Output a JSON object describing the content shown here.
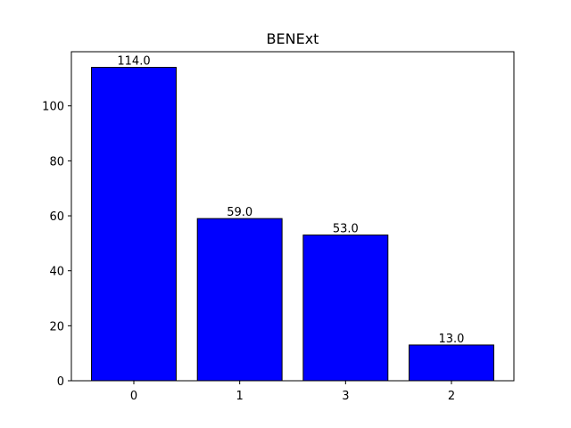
{
  "chart_data": {
    "type": "bar",
    "title": "BENExt",
    "xlabel": "",
    "ylabel": "",
    "categories": [
      "0",
      "1",
      "3",
      "2"
    ],
    "values": [
      114,
      59,
      53,
      13
    ],
    "data_labels": [
      "114.0",
      "59.0",
      "53.0",
      "13.0"
    ],
    "yticks": [
      0,
      20,
      40,
      60,
      80,
      100
    ],
    "ylim": [
      0,
      119.7
    ],
    "grid": false,
    "legend": "none",
    "colors": {
      "bar_fill": "#0000ff",
      "bar_edge": "#000000",
      "axes": "#000000",
      "background": "#ffffff"
    }
  }
}
